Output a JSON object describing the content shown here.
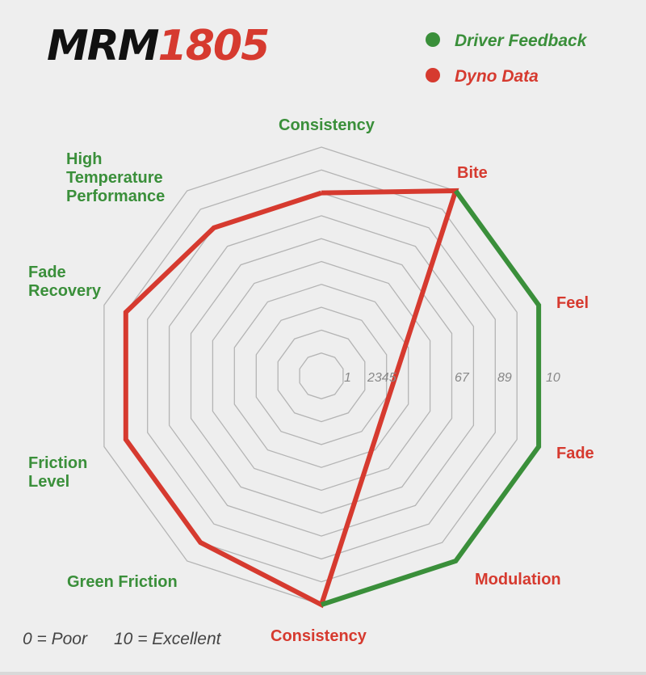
{
  "logo": {
    "part1": "MRM",
    "part2": "1805",
    "color1": "#111111",
    "color2": "#d63a2f"
  },
  "legend": [
    {
      "label": "Driver Feedback",
      "color": "#3a8f3a"
    },
    {
      "label": "Dyno Data",
      "color": "#d63a2f"
    }
  ],
  "scale_note": {
    "min": "0 = Poor",
    "max": "10 = Excellent"
  },
  "chart_data": {
    "type": "radar",
    "max": 10,
    "rings": 10,
    "grid": true,
    "legend_position": "top-right",
    "tick_labels": [
      "1",
      "2345",
      "67",
      "89",
      "10"
    ],
    "axes": [
      {
        "label": [
          "Consistency"
        ],
        "color": "#3a8f3a"
      },
      {
        "label": [
          "Bite"
        ],
        "color": "#d63a2f"
      },
      {
        "label": [
          "Feel"
        ],
        "color": "#d63a2f"
      },
      {
        "label": [
          "Fade"
        ],
        "color": "#d63a2f"
      },
      {
        "label": [
          "Modulation"
        ],
        "color": "#d63a2f"
      },
      {
        "label": [
          "Consistency"
        ],
        "color": "#d63a2f"
      },
      {
        "label": [
          "Green Friction"
        ],
        "color": "#3a8f3a"
      },
      {
        "label": [
          "Friction",
          "Level"
        ],
        "color": "#3a8f3a"
      },
      {
        "label": [
          "Fade",
          "Recovery"
        ],
        "color": "#3a8f3a"
      },
      {
        "label": [
          "High",
          "Temperature",
          "Performance"
        ],
        "color": "#3a8f3a"
      }
    ],
    "series": [
      {
        "name": "Dyno Data",
        "color": "#d63a2f",
        "points": [
          [
            0,
            8
          ],
          [
            1,
            10
          ],
          [
            5,
            10
          ],
          [
            6,
            9
          ],
          [
            7,
            9
          ],
          [
            8,
            9
          ],
          [
            9,
            8
          ],
          [
            0,
            8
          ]
        ]
      },
      {
        "name": "Driver Feedback",
        "color": "#3a8f3a",
        "points": [
          [
            1,
            10
          ],
          [
            2,
            10
          ],
          [
            3,
            10
          ],
          [
            4,
            10
          ],
          [
            5,
            10
          ]
        ]
      }
    ]
  }
}
